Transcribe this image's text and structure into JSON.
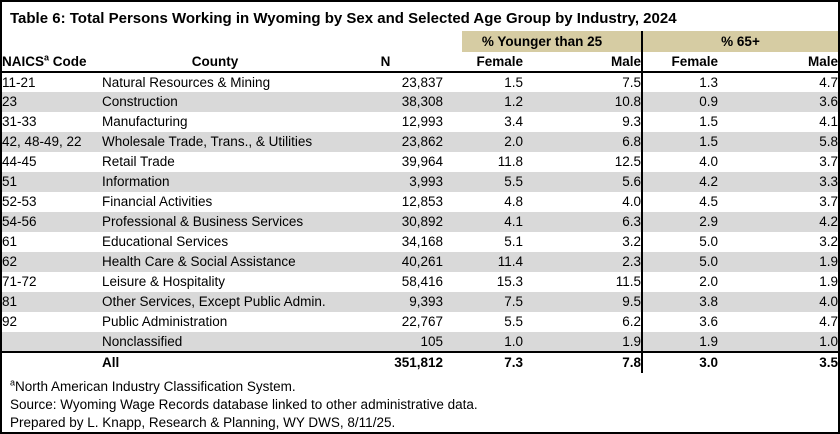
{
  "title": "Table 6: Total Persons Working in Wyoming by Sex and Selected Age Group by Industry, 2024",
  "colors": {
    "group_band": "#d6cca3",
    "row_stripe": "#d9d9d9",
    "border": "#000000"
  },
  "column_groups": {
    "younger": "% Younger than 25",
    "older": "% 65+"
  },
  "columns": {
    "naics_prefix": "NAICS",
    "naics_sup": "a",
    "naics_suffix": " Code",
    "county": "County",
    "n": "N",
    "younger_female": "Female",
    "younger_male": "Male",
    "older_female": "Female",
    "older_male": "Male"
  },
  "rows": [
    {
      "code": "11-21",
      "industry": "Natural Resources & Mining",
      "n": "23,837",
      "younger_female": "1.5",
      "younger_male": "7.5",
      "older_female": "1.3",
      "older_male": "4.7"
    },
    {
      "code": "23",
      "industry": "Construction",
      "n": "38,308",
      "younger_female": "1.2",
      "younger_male": "10.8",
      "older_female": "0.9",
      "older_male": "3.6"
    },
    {
      "code": "31-33",
      "industry": "Manufacturing",
      "n": "12,993",
      "younger_female": "3.4",
      "younger_male": "9.3",
      "older_female": "1.5",
      "older_male": "4.1"
    },
    {
      "code": "42, 48-49, 22",
      "industry": "Wholesale Trade, Trans., & Utilities",
      "n": "23,862",
      "younger_female": "2.0",
      "younger_male": "6.8",
      "older_female": "1.5",
      "older_male": "5.8"
    },
    {
      "code": "44-45",
      "industry": "Retail Trade",
      "n": "39,964",
      "younger_female": "11.8",
      "younger_male": "12.5",
      "older_female": "4.0",
      "older_male": "3.7"
    },
    {
      "code": "51",
      "industry": "Information",
      "n": "3,993",
      "younger_female": "5.5",
      "younger_male": "5.6",
      "older_female": "4.2",
      "older_male": "3.3"
    },
    {
      "code": "52-53",
      "industry": "Financial Activities",
      "n": "12,853",
      "younger_female": "4.8",
      "younger_male": "4.0",
      "older_female": "4.5",
      "older_male": "3.7"
    },
    {
      "code": "54-56",
      "industry": "Professional & Business Services",
      "n": "30,892",
      "younger_female": "4.1",
      "younger_male": "6.3",
      "older_female": "2.9",
      "older_male": "4.2"
    },
    {
      "code": "61",
      "industry": "Educational Services",
      "n": "34,168",
      "younger_female": "5.1",
      "younger_male": "3.2",
      "older_female": "5.0",
      "older_male": "3.2"
    },
    {
      "code": "62",
      "industry": "Health Care & Social Assistance",
      "n": "40,261",
      "younger_female": "11.4",
      "younger_male": "2.3",
      "older_female": "5.0",
      "older_male": "1.9"
    },
    {
      "code": "71-72",
      "industry": "Leisure & Hospitality",
      "n": "58,416",
      "younger_female": "15.3",
      "younger_male": "11.5",
      "older_female": "2.0",
      "older_male": "1.9"
    },
    {
      "code": "81",
      "industry": "Other Services, Except Public Admin.",
      "n": "9,393",
      "younger_female": "7.5",
      "younger_male": "9.5",
      "older_female": "3.8",
      "older_male": "4.0"
    },
    {
      "code": "92",
      "industry": "Public Administration",
      "n": "22,767",
      "younger_female": "5.5",
      "younger_male": "6.2",
      "older_female": "3.6",
      "older_male": "4.7"
    },
    {
      "code": "",
      "industry": "Nonclassified",
      "n": "105",
      "younger_female": "1.0",
      "younger_male": "1.9",
      "older_female": "1.9",
      "older_male": "1.0"
    }
  ],
  "total": {
    "code": "",
    "industry": "All",
    "n": "351,812",
    "younger_female": "7.3",
    "younger_male": "7.8",
    "older_female": "3.0",
    "older_male": "3.5"
  },
  "footnotes": {
    "naics_sup": "a",
    "naics_text": "North American Industry Classification System.",
    "source": "Source: Wyoming Wage Records database linked to other administrative data.",
    "prepared": "Prepared by L. Knapp, Research & Planning, WY DWS, 8/11/25."
  }
}
